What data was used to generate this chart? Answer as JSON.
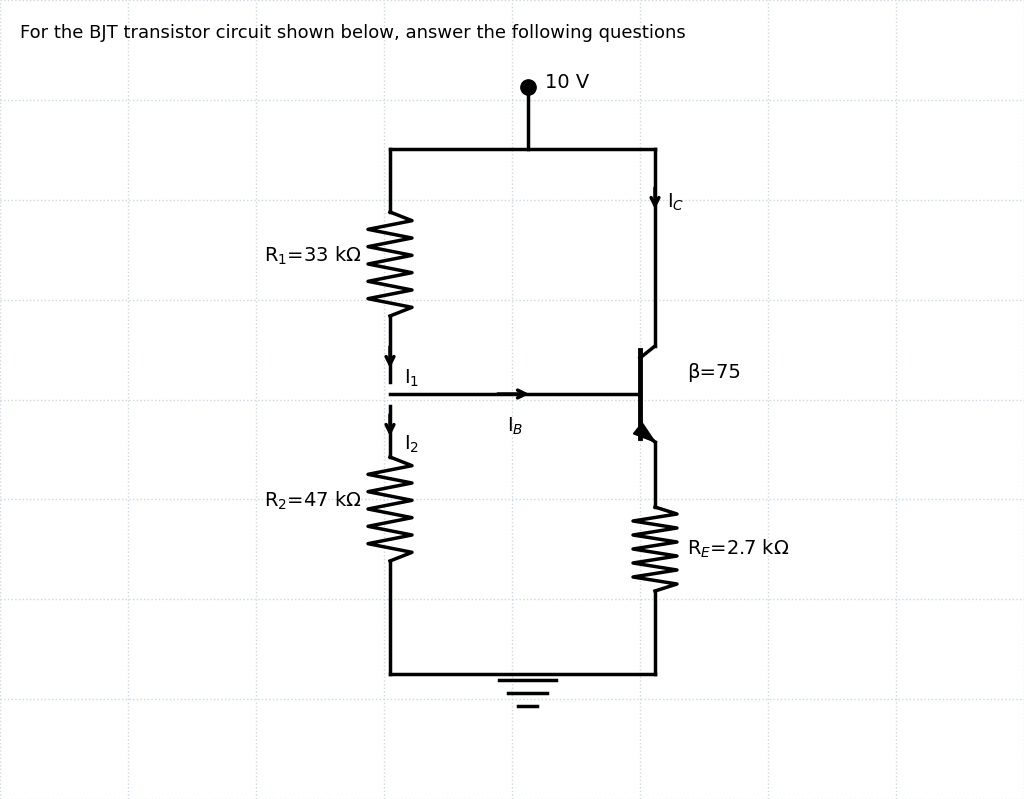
{
  "title": "For the BJT transistor circuit shown below, answer the following questions",
  "title_fontsize": 13,
  "bg_color": "#ffffff",
  "grid_color": "#c8d8e8",
  "circuit_color": "#000000",
  "R1_label": "R$_1$=33 kΩ",
  "R2_label": "R$_2$=47 kΩ",
  "RE_label": "R$_E$=2.7 kΩ",
  "beta_label": "β=75",
  "Vcc_label": "10 V",
  "IC_label": "I$_C$",
  "IB_label": "I$_B$",
  "I1_label": "I$_1$",
  "I2_label": "I$_2$"
}
